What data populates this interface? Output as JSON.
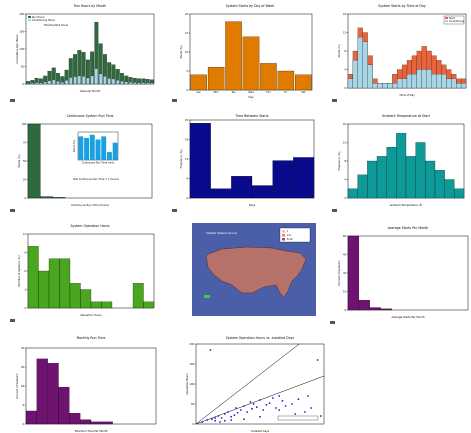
{
  "chart_data": [
    {
      "type": "bar",
      "title": "Run Hours by Month",
      "subtitle": "Total Runtime Hours",
      "legend": [
        "Run Hours",
        "Conditioning Hours"
      ],
      "legend_position": "top-left",
      "colors": [
        "#2f6a3e",
        "#a7d6e6"
      ],
      "ylabel": "Cumulative Run Hours",
      "xlabel": "Calendar Month",
      "ylim": [
        0,
        260
      ],
      "series": [
        {
          "values": [
            10,
            14,
            22,
            20,
            30,
            48,
            60,
            40,
            28,
            52,
            95,
            110,
            125,
            118,
            90,
            120,
            230,
            150,
            110,
            80,
            72,
            55,
            40,
            30,
            25,
            22,
            20,
            20,
            18,
            16
          ]
        },
        {
          "values": [
            8,
            12,
            18,
            16,
            25,
            40,
            50,
            34,
            22,
            45,
            80,
            92,
            100,
            95,
            75,
            100,
            190,
            125,
            95,
            70,
            62,
            48,
            36,
            26,
            22,
            19,
            17,
            18,
            15,
            14
          ]
        }
      ]
    },
    {
      "type": "bar",
      "title": "System Starts by Day of Week",
      "color": "#e07b00",
      "ylabel": "Starts (%)",
      "xlabel": "Day",
      "categories": [
        "Sun",
        "Mon",
        "Tue",
        "Wed",
        "Thu",
        "Fri",
        "Sat"
      ],
      "values": [
        4,
        6,
        18,
        14,
        7,
        5,
        4
      ],
      "ylim": [
        0,
        20
      ]
    },
    {
      "type": "bar",
      "title": "System Starts by Time of Day",
      "legend": [
        "Start",
        "Conditioning"
      ],
      "legend_position": "top-right",
      "colors": [
        "#e8643c",
        "#a7d6e6"
      ],
      "ylabel": "Starts (%)",
      "xlabel": "Time of Day",
      "series": [
        {
          "values": [
            3,
            8,
            13,
            12,
            7,
            2,
            1,
            1,
            1,
            3,
            4,
            5,
            6,
            7,
            8,
            9,
            8,
            7,
            6,
            5,
            4,
            3,
            2,
            2
          ]
        },
        {
          "values": [
            2,
            6,
            11,
            10,
            5,
            1,
            1,
            1,
            1,
            1,
            2,
            2,
            3,
            3,
            4,
            4,
            4,
            3,
            3,
            3,
            2,
            2,
            1,
            1
          ]
        }
      ],
      "ylim": [
        0,
        16
      ]
    },
    {
      "type": "bar",
      "title": "Continuous System Run Time",
      "color": "#2f6a3e",
      "ylabel": "Starts (%)",
      "xlabel": "Continuous Run Time (hours)",
      "note": "Max Continuous Run Time = 1 (hours)",
      "values": [
        100,
        2,
        1,
        0,
        0,
        0,
        0,
        0,
        0,
        0
      ],
      "ylim": [
        0,
        100
      ],
      "inset": {
        "color": "#1a9fe0",
        "xlabel": "Continuous Run Time (min)",
        "ylabel": "Starts (%)",
        "values": [
          30,
          28,
          32,
          26,
          30,
          10,
          22
        ]
      }
    },
    {
      "type": "bar",
      "title": "Time Between Starts",
      "color": "#0a0a8c",
      "ylabel": "Frequency (%)",
      "xlabel": "Days",
      "values": [
        24,
        3,
        7,
        4,
        12,
        13
      ],
      "ylim": [
        0,
        25
      ]
    },
    {
      "type": "bar",
      "title": "Ambient Temperature at Start",
      "color": "#0f9a9a",
      "ylabel": "Frequency (%)",
      "xlabel": "Ambient Temperature (F)",
      "values": [
        2,
        5,
        8,
        9,
        11,
        14,
        9,
        12,
        8,
        6,
        4,
        2
      ],
      "ylim": [
        0,
        16
      ]
    },
    {
      "type": "bar",
      "title": "System Operation Hours",
      "color": "#4aa51f",
      "ylabel": "Number of Systems (%)",
      "xlabel": "Operation Hours",
      "values": [
        10,
        6,
        8,
        8,
        4,
        3,
        1,
        1,
        0,
        0,
        4,
        1
      ],
      "ylim": [
        0,
        12
      ]
    },
    {
      "type": "other",
      "title": "Installed Systems (Count)",
      "legend": [
        "1",
        "2-5",
        "6-10"
      ],
      "legend_position": "top-right",
      "background": "#4a5fa8",
      "land_color": "#b6716a",
      "marker_color": "#3bd13b"
    },
    {
      "type": "bar",
      "title": "Average Starts Per Month",
      "color": "#6e1370",
      "ylabel": "Percent of Systems",
      "xlabel": "Average Starts Per Month",
      "values": [
        60,
        8,
        2,
        1,
        0,
        0,
        0,
        0,
        0,
        0,
        0
      ],
      "ylim": [
        0,
        60
      ]
    },
    {
      "type": "bar",
      "title": "Monthly Run Time",
      "color": "#6e1370",
      "ylabel": "Percent of Systems",
      "xlabel": "Total Run Time Per Month",
      "values": [
        6,
        30,
        28,
        17,
        5,
        2,
        1,
        1,
        0,
        0,
        0,
        0
      ],
      "ylim": [
        0,
        35
      ]
    },
    {
      "type": "scatter",
      "title": "System Operation Hours vs. Installed Days",
      "color": "#2020d0",
      "ylabel": "Operation Hours",
      "xlabel": "Installed Days",
      "xlim": [
        0,
        400
      ],
      "ylim": [
        0,
        200
      ],
      "x": [
        20,
        35,
        50,
        60,
        70,
        80,
        90,
        100,
        110,
        120,
        125,
        130,
        140,
        150,
        160,
        170,
        175,
        180,
        190,
        200,
        210,
        220,
        230,
        240,
        250,
        260,
        270,
        280,
        300,
        320,
        340,
        350,
        360,
        380,
        390,
        60,
        90,
        110,
        150,
        200,
        260,
        310,
        370,
        45,
        75
      ],
      "y": [
        5,
        10,
        12,
        8,
        20,
        15,
        25,
        30,
        18,
        22,
        40,
        28,
        35,
        45,
        30,
        55,
        38,
        50,
        42,
        60,
        35,
        48,
        52,
        65,
        40,
        70,
        58,
        45,
        50,
        62,
        30,
        70,
        40,
        160,
        20,
        15,
        8,
        10,
        12,
        18,
        35,
        25,
        15,
        185,
        5
      ],
      "trendlines": [
        {
          "slope": 0.62,
          "intercept": 0
        },
        {
          "slope": 0.3,
          "intercept": 0
        }
      ]
    }
  ]
}
